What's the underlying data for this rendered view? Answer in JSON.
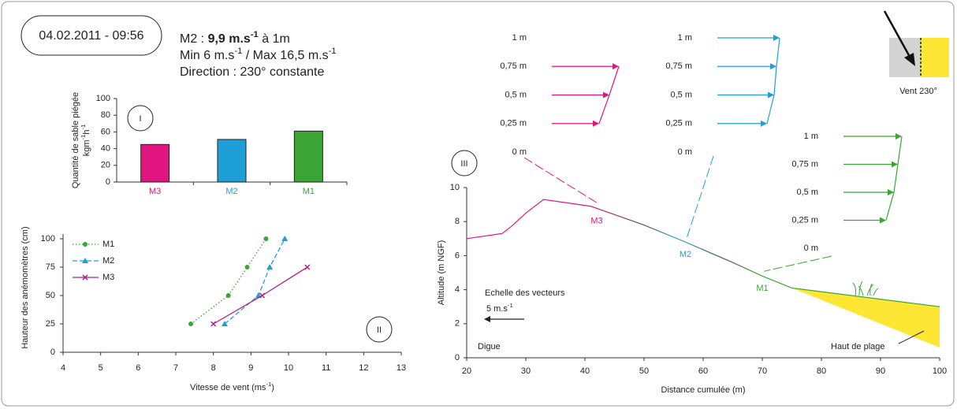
{
  "header": {
    "date": "04.02.2011 - 09:56",
    "lines": [
      [
        {
          "text": "M2 : "
        },
        {
          "text": "9,9 m.s",
          "bold": true
        },
        {
          "text": "-1",
          "bold": true,
          "sup": true
        },
        {
          "text": " à 1m"
        }
      ],
      [
        {
          "text": "Min 6 m.s"
        },
        {
          "text": "-1",
          "sup": true
        },
        {
          "text": " / Max 16,5 m.s"
        },
        {
          "text": "-1",
          "sup": true
        }
      ],
      [
        {
          "text": "Direction : 230° constante"
        }
      ]
    ]
  },
  "wind_icon": {
    "label": "Vent 230°"
  },
  "chart_data": [
    {
      "type": "bar",
      "label": "I",
      "ylabel": [
        [
          {
            "text": "Quantité de sable piégée"
          }
        ],
        [
          {
            "text": "kgm"
          },
          {
            "text": "-1",
            "sup": true
          },
          {
            "text": "h"
          },
          {
            "text": "-1",
            "sup": true
          }
        ]
      ],
      "categories": [
        "M3",
        "M2",
        "M1"
      ],
      "values": [
        45,
        51,
        61
      ],
      "colors": [
        "#e0157f",
        "#1f9fd8",
        "#3aa535"
      ],
      "ylim": [
        0,
        100
      ],
      "yticks": [
        0,
        20,
        40,
        60,
        80,
        100
      ]
    },
    {
      "type": "line",
      "label": "II",
      "xlabel": [
        {
          "text": "Vitesse de vent (ms"
        },
        {
          "text": "-1",
          "sup": true
        },
        {
          "text": ")"
        }
      ],
      "ylabel": "Hauteur des anémomètres (cm)",
      "xlim": [
        4,
        13
      ],
      "xticks": [
        4,
        5,
        6,
        7,
        8,
        9,
        10,
        11,
        12,
        13
      ],
      "ylim": [
        0,
        100
      ],
      "yticks": [
        0,
        25,
        50,
        75,
        100
      ],
      "legend": "top-left",
      "series": [
        {
          "name": "M1",
          "color": "#3aa535",
          "dash": "dotted",
          "marker": "circle",
          "x": [
            7.4,
            8.4,
            8.9,
            9.4
          ],
          "values": [
            25,
            50,
            75,
            100
          ]
        },
        {
          "name": "M2",
          "color": "#1f9fd8",
          "dash": "dashed",
          "marker": "triangle",
          "x": [
            8.3,
            9.2,
            9.5,
            9.9
          ],
          "values": [
            25,
            50,
            75,
            100
          ]
        },
        {
          "name": "M3",
          "color": "#b0208a",
          "dash": "solid",
          "marker": "cross",
          "x": [
            8,
            9.3,
            10.5
          ],
          "values": [
            25,
            50,
            75
          ]
        }
      ]
    },
    {
      "type": "profile",
      "label": "III",
      "xlabel": "Distance cumulée (m)",
      "ylabel": "Altitude (m NGF)",
      "xlim": [
        20,
        100
      ],
      "xticks": [
        20,
        30,
        40,
        50,
        60,
        70,
        80,
        90,
        100
      ],
      "ylim": [
        0,
        10
      ],
      "yticks": [
        0,
        2,
        4,
        6,
        8,
        10
      ],
      "profile": {
        "x": [
          20,
          26,
          27.5,
          30,
          33,
          41,
          50,
          57,
          65,
          70,
          75,
          100
        ],
        "values": [
          7,
          7.3,
          7.7,
          8.5,
          9.3,
          8.9,
          7.8,
          6.8,
          5.6,
          4.8,
          4.1,
          3
        ]
      },
      "beach": {
        "x": [
          75,
          100
        ],
        "top": [
          4.1,
          3
        ],
        "bottom": [
          4.1,
          0.6
        ],
        "color": "#fde634"
      },
      "stations": [
        {
          "label": "M3",
          "x": 42,
          "color": "#e0157f",
          "yticks": [
            {
              "value": 0,
              "label": "0 m"
            },
            {
              "value": 25,
              "label": "0,25 m"
            },
            {
              "value": 50,
              "label": "0,5 m"
            },
            {
              "value": 75,
              "label": "0,75 m"
            },
            {
              "value": 100,
              "label": "1 m"
            }
          ]
        },
        {
          "label": "M2",
          "x": 57,
          "color": "#1f9fd8",
          "yticks": [
            {
              "value": 0,
              "label": "0 m"
            },
            {
              "value": 25,
              "label": "0,25 m"
            },
            {
              "value": 50,
              "label": "0,5 m"
            },
            {
              "value": 75,
              "label": "0,75 m"
            },
            {
              "value": 100,
              "label": "1 m"
            }
          ]
        },
        {
          "label": "M1",
          "x": 70,
          "color": "#3aa535",
          "yticks": [
            {
              "value": 0,
              "label": "0 m"
            },
            {
              "value": 25,
              "label": "0,25 m"
            },
            {
              "value": 50,
              "label": "0,5 m"
            },
            {
              "value": 75,
              "label": "0,75 m"
            },
            {
              "value": 100,
              "label": "1 m"
            }
          ]
        }
      ],
      "vector_scale": {
        "title": "Echelle des vecteurs",
        "label": [
          {
            "text": "5 m.s"
          },
          {
            "text": "-1",
            "sup": true
          }
        ],
        "value": 5
      },
      "annotations": [
        "Digue",
        "Haut de plage"
      ]
    }
  ]
}
